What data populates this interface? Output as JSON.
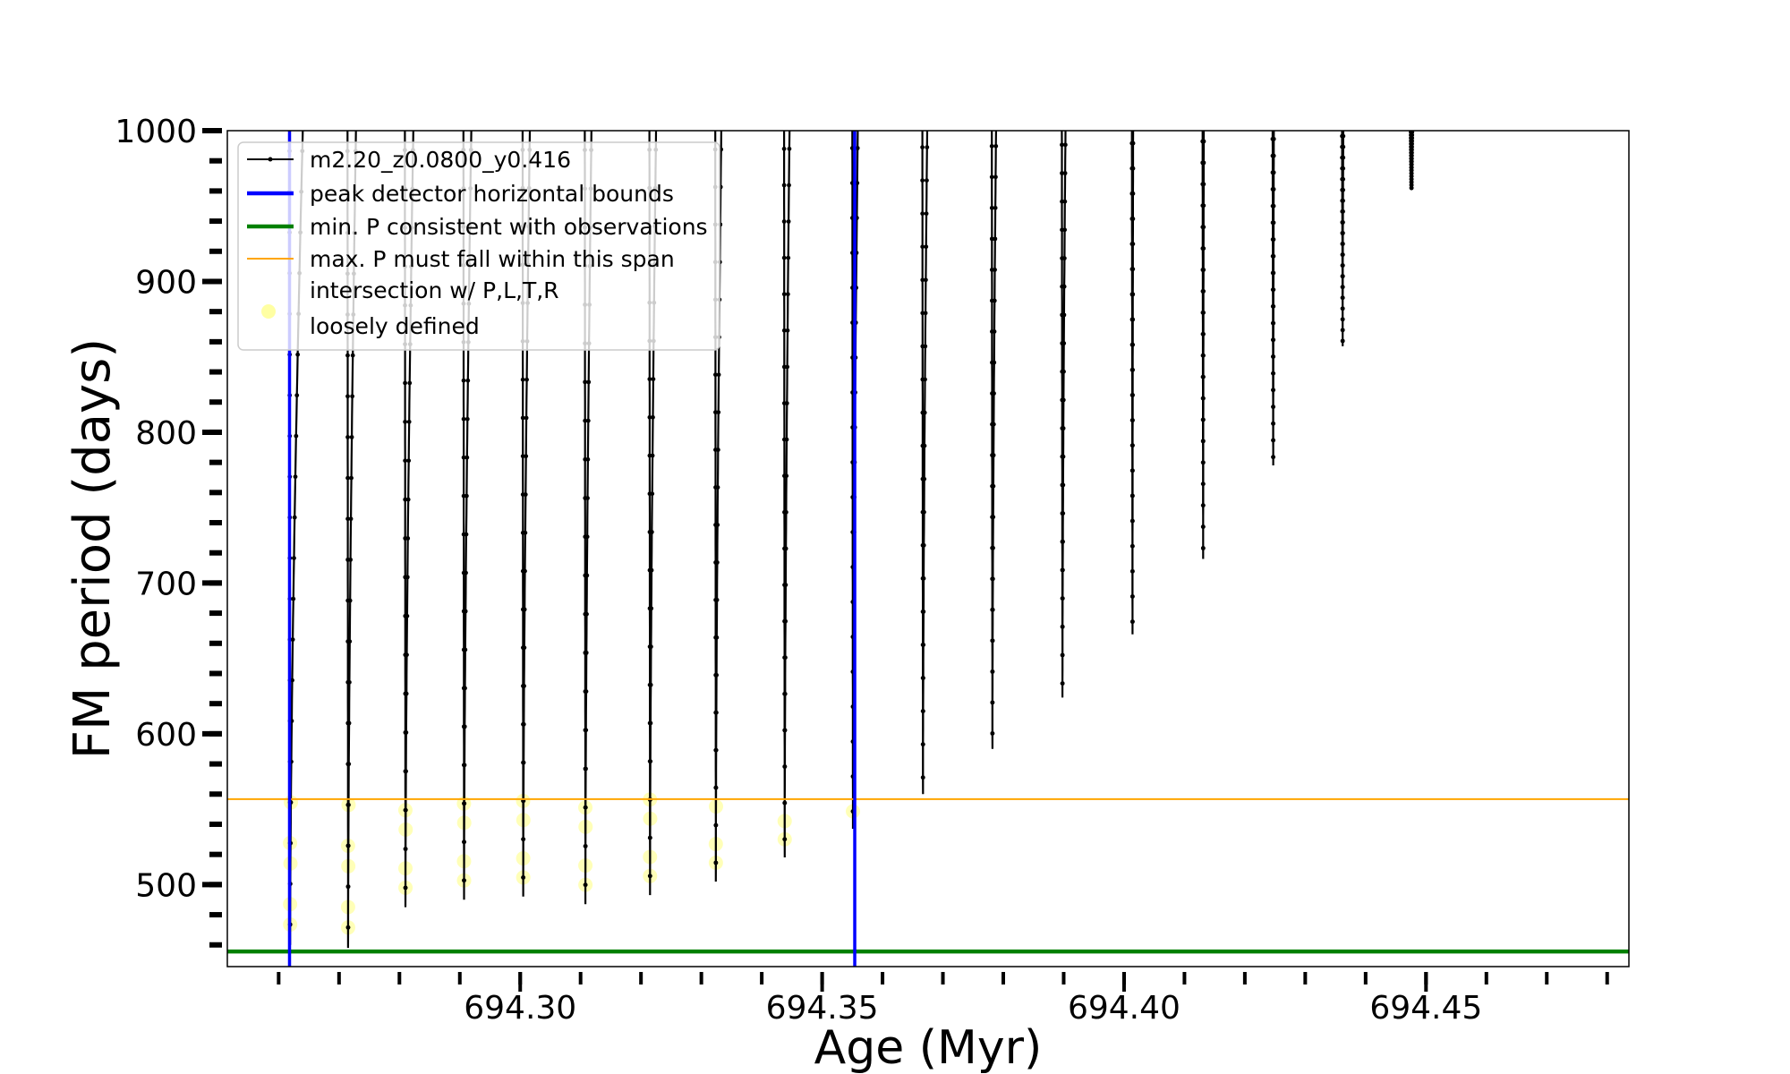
{
  "chart_data": {
    "type": "line",
    "title": "",
    "xlabel": "Age (Myr)",
    "ylabel": "FM period (days)",
    "xlim": [
      694.2515,
      694.4836
    ],
    "ylim": [
      445.6,
      1000
    ],
    "xticks": [
      694.3,
      694.35,
      694.4,
      694.45
    ],
    "xtick_labels": [
      "694.30",
      "694.35",
      "694.40",
      "694.45"
    ],
    "xminor_step": 0.01,
    "yticks": [
      500,
      600,
      700,
      800,
      900,
      1000
    ],
    "ytick_labels": [
      "500",
      "600",
      "700",
      "800",
      "900",
      "1000"
    ],
    "yminor_step": 20,
    "grid": false,
    "legend_placement": "top-left",
    "legend": [
      {
        "label": "m2.20_z0.0800_y0.416",
        "kind": "line-marker",
        "color": "#000000"
      },
      {
        "label": "peak detector horizontal bounds",
        "kind": "line",
        "color": "#0000ff"
      },
      {
        "label": "min. P consistent with observations",
        "kind": "line",
        "color": "#008000"
      },
      {
        "label": "max. P must fall within this span",
        "kind": "line",
        "color": "#ffa500"
      },
      {
        "label": "intersection w/ P,L,T,R",
        "label2": "loosely defined",
        "kind": "marker",
        "color": "#ffff66"
      }
    ],
    "series": {
      "name": "m2.20_z0.0800_y0.416",
      "color": "#000000",
      "spikes": [
        {
          "age": 694.2618,
          "min_period": 460,
          "rise_width": 0.0021
        },
        {
          "age": 694.2714,
          "min_period": 458,
          "rise_width": 0.0013
        },
        {
          "age": 694.2809,
          "min_period": 485,
          "rise_width": 0.0013
        },
        {
          "age": 694.2906,
          "min_period": 490,
          "rise_width": 0.0012
        },
        {
          "age": 694.3004,
          "min_period": 492,
          "rise_width": 0.0011
        },
        {
          "age": 694.3107,
          "min_period": 487,
          "rise_width": 0.001
        },
        {
          "age": 694.3214,
          "min_period": 493,
          "rise_width": 0.001
        },
        {
          "age": 694.3323,
          "min_period": 502,
          "rise_width": 0.0009
        },
        {
          "age": 694.3437,
          "min_period": 518,
          "rise_width": 0.0008
        },
        {
          "age": 694.355,
          "min_period": 537,
          "rise_width": 0.0008
        },
        {
          "age": 694.3666,
          "min_period": 560,
          "rise_width": 0.0007
        },
        {
          "age": 694.3781,
          "min_period": 590,
          "rise_width": 0.0006
        },
        {
          "age": 694.3897,
          "min_period": 624,
          "rise_width": 0.0005
        },
        {
          "age": 694.4013,
          "min_period": 666,
          "rise_width": 0.0001
        },
        {
          "age": 694.413,
          "min_period": 716,
          "rise_width": 0.0001
        },
        {
          "age": 694.4246,
          "min_period": 778,
          "rise_width": 0.0001
        },
        {
          "age": 694.4361,
          "min_period": 857,
          "rise_width": 0.0001
        },
        {
          "age": 694.4475,
          "min_period": 961,
          "rise_width": 0.0001
        }
      ]
    },
    "vlines": [
      {
        "name": "peak detector horizontal bounds",
        "x": 694.2618,
        "color": "#0000ff"
      },
      {
        "name": "peak detector horizontal bounds",
        "x": 694.3554,
        "color": "#0000ff"
      }
    ],
    "hlines": [
      {
        "name": "min. P consistent with observations",
        "y": 455.6,
        "color": "#008000"
      },
      {
        "name": "max. P must fall within this span",
        "y": 556.7,
        "color": "#ffa500"
      }
    ],
    "highlight": {
      "name": "intersection w/ P,L,T,R loosely defined",
      "color": "#ffff33",
      "below": 556.7,
      "spike_count": 10
    }
  }
}
